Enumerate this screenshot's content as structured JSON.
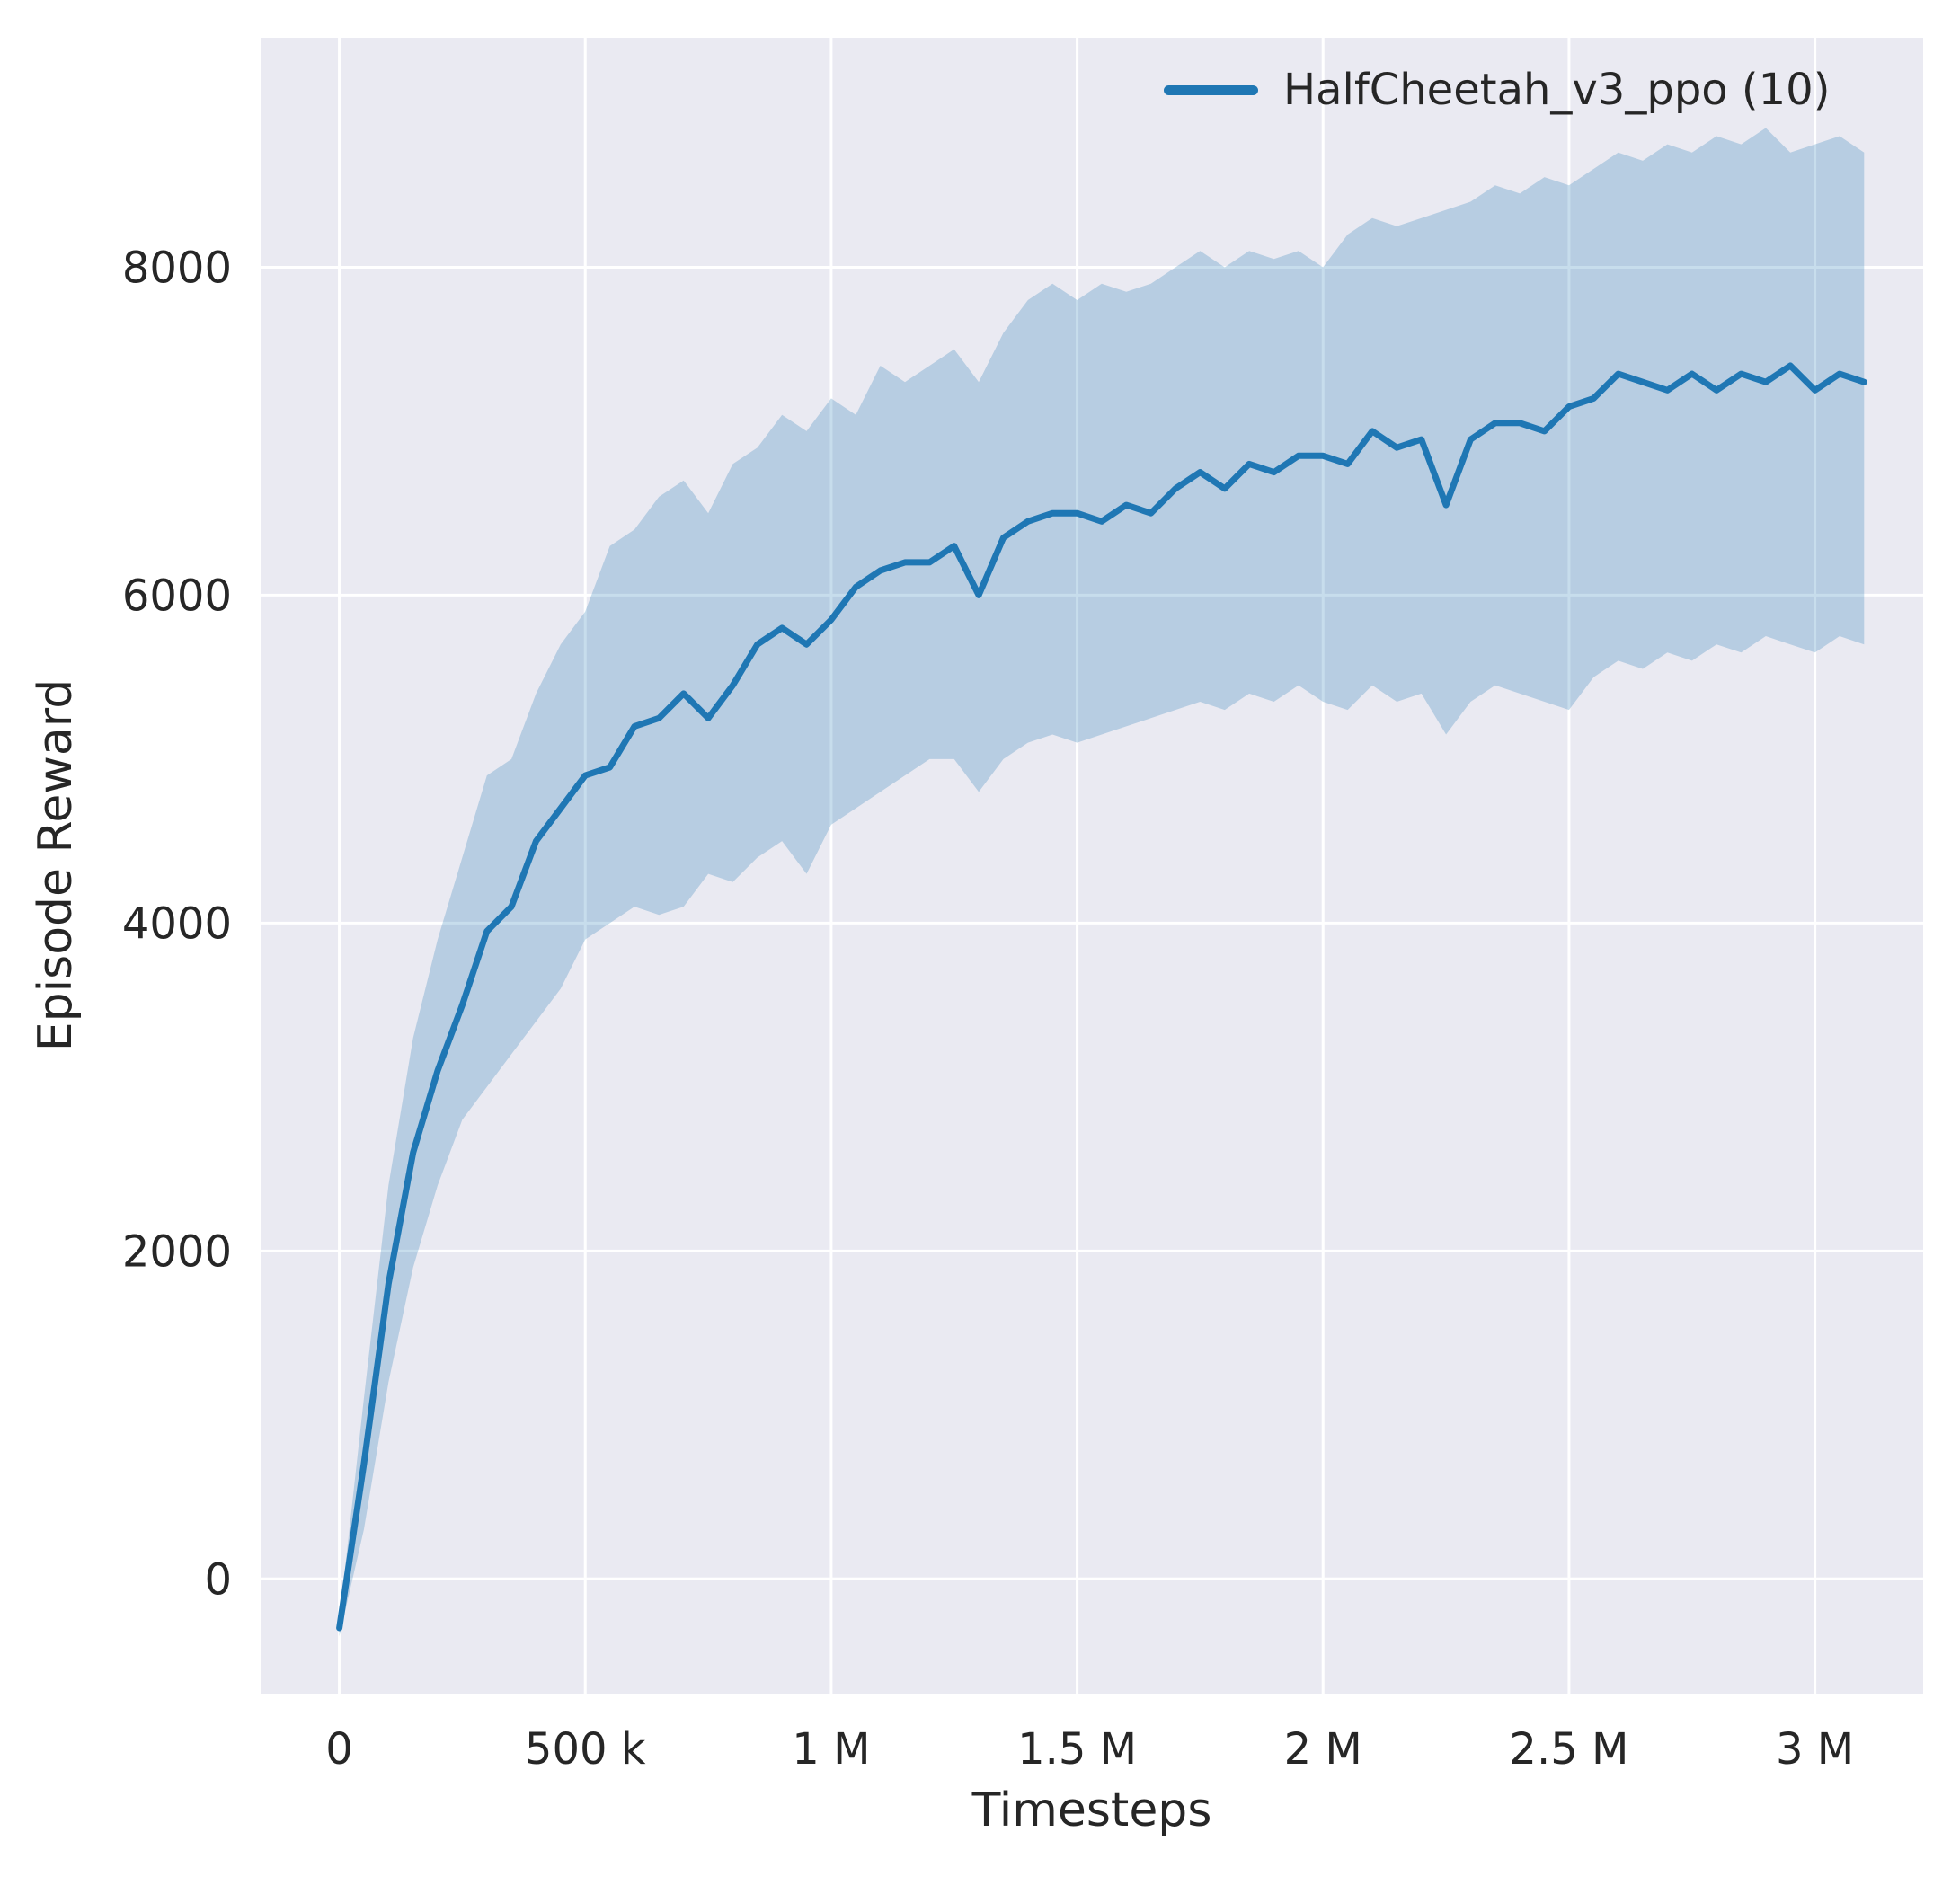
{
  "figure": {
    "xlabel": "Timesteps",
    "ylabel": "Episode Reward"
  },
  "chart_data": {
    "type": "line",
    "title": "",
    "xlabel": "Timesteps",
    "ylabel": "Episode Reward",
    "legend_position": "upper right",
    "grid": true,
    "background_color": "#eaeaf2",
    "grid_color": "#ffffff",
    "line_color": "#1f77b4",
    "band_color": "#1f77b4",
    "band_opacity": 0.25,
    "xlim": [
      -160000,
      3220000
    ],
    "ylim": [
      -700,
      9400
    ],
    "x_ticks": [
      {
        "v": 0,
        "label": "0"
      },
      {
        "v": 500000,
        "label": "500 k"
      },
      {
        "v": 1000000,
        "label": "1 M"
      },
      {
        "v": 1500000,
        "label": "1.5 M"
      },
      {
        "v": 2000000,
        "label": "2 M"
      },
      {
        "v": 2500000,
        "label": "2.5 M"
      },
      {
        "v": 3000000,
        "label": "3 M"
      }
    ],
    "y_ticks": [
      {
        "v": 0,
        "label": "0"
      },
      {
        "v": 2000,
        "label": "2000"
      },
      {
        "v": 4000,
        "label": "4000"
      },
      {
        "v": 6000,
        "label": "6000"
      },
      {
        "v": 8000,
        "label": "8000"
      }
    ],
    "x": [
      0,
      50000,
      100000,
      150000,
      200000,
      250000,
      300000,
      350000,
      400000,
      450000,
      500000,
      550000,
      600000,
      650000,
      700000,
      750000,
      800000,
      850000,
      900000,
      950000,
      1000000,
      1050000,
      1100000,
      1150000,
      1200000,
      1250000,
      1300000,
      1350000,
      1400000,
      1450000,
      1500000,
      1550000,
      1600000,
      1650000,
      1700000,
      1750000,
      1800000,
      1850000,
      1900000,
      1950000,
      2000000,
      2050000,
      2100000,
      2150000,
      2200000,
      2250000,
      2300000,
      2350000,
      2400000,
      2450000,
      2500000,
      2550000,
      2600000,
      2650000,
      2700000,
      2750000,
      2800000,
      2850000,
      2900000,
      2950000,
      3000000,
      3050000,
      3100000
    ],
    "series": [
      {
        "name": "HalfCheetah_v3_ppo (10)",
        "mean": [
          -300,
          700,
          1800,
          2600,
          3100,
          3500,
          3950,
          4100,
          4500,
          4700,
          4900,
          4950,
          5200,
          5250,
          5400,
          5250,
          5450,
          5700,
          5800,
          5700,
          5850,
          6050,
          6150,
          6200,
          6200,
          6300,
          6000,
          6350,
          6450,
          6500,
          6500,
          6450,
          6550,
          6500,
          6650,
          6750,
          6650,
          6800,
          6750,
          6850,
          6850,
          6800,
          7000,
          6900,
          6950,
          6550,
          6950,
          7050,
          7050,
          7000,
          7150,
          7200,
          7350,
          7300,
          7250,
          7350,
          7250,
          7350,
          7300,
          7400,
          7250,
          7350,
          7300
        ],
        "lower": [
          -350,
          300,
          1200,
          1900,
          2400,
          2800,
          3000,
          3200,
          3400,
          3600,
          3900,
          4000,
          4100,
          4050,
          4100,
          4300,
          4250,
          4400,
          4500,
          4300,
          4600,
          4700,
          4800,
          4900,
          5000,
          5000,
          4800,
          5000,
          5100,
          5150,
          5100,
          5150,
          5200,
          5250,
          5300,
          5350,
          5300,
          5400,
          5350,
          5450,
          5350,
          5300,
          5450,
          5350,
          5400,
          5150,
          5350,
          5450,
          5400,
          5350,
          5300,
          5500,
          5600,
          5550,
          5650,
          5600,
          5700,
          5650,
          5750,
          5700,
          5650,
          5750,
          5700
        ],
        "upper": [
          -250,
          1100,
          2400,
          3300,
          3900,
          4400,
          4900,
          5000,
          5400,
          5700,
          5900,
          6300,
          6400,
          6600,
          6700,
          6500,
          6800,
          6900,
          7100,
          7000,
          7200,
          7100,
          7400,
          7300,
          7400,
          7500,
          7300,
          7600,
          7800,
          7900,
          7800,
          7900,
          7850,
          7900,
          8000,
          8100,
          8000,
          8100,
          8050,
          8100,
          8000,
          8200,
          8300,
          8250,
          8300,
          8350,
          8400,
          8500,
          8450,
          8550,
          8500,
          8600,
          8700,
          8650,
          8750,
          8700,
          8800,
          8750,
          8850,
          8700,
          8750,
          8800,
          8700
        ]
      }
    ]
  }
}
